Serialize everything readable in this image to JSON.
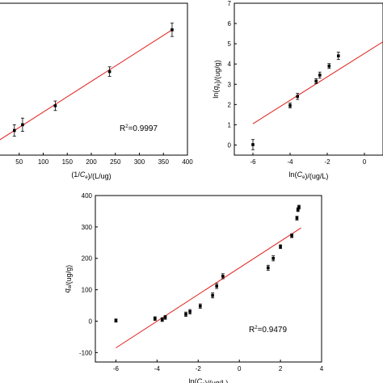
{
  "chart_data": [
    {
      "type": "scatter",
      "xlabel": "(1/C_e)/(L/ug)",
      "ylabel": "",
      "xlim": [
        0,
        400
      ],
      "x_ticks": [
        50,
        100,
        150,
        200,
        250,
        300,
        350,
        400
      ],
      "x_tick_labels": [
        "50",
        "100",
        "150",
        "200",
        "250",
        "300",
        "350",
        "400"
      ],
      "ylim": [
        0,
        8
      ],
      "y_ticks": [],
      "grid": false,
      "annotation": "R²=0.9997",
      "points": [
        {
          "x": 40,
          "y": 1.3,
          "err": 0.3
        },
        {
          "x": 57,
          "y": 1.6,
          "err": 0.35
        },
        {
          "x": 125,
          "y": 2.6,
          "err": 0.25
        },
        {
          "x": 238,
          "y": 4.4,
          "err": 0.25
        },
        {
          "x": 368,
          "y": 6.6,
          "err": 0.35
        }
      ],
      "fit": {
        "x": [
          0,
          368
        ],
        "y": [
          0.65,
          6.6
        ]
      }
    },
    {
      "type": "scatter",
      "xlabel": "ln(C_e)/(ug/L)",
      "ylabel": "ln(q_e)/(ug/g)",
      "xlim": [
        -7,
        1
      ],
      "x_ticks": [
        -6,
        -4,
        -2,
        0
      ],
      "x_tick_labels": [
        "-6",
        "-4",
        "-2",
        "0"
      ],
      "ylim": [
        -0.5,
        7
      ],
      "y_ticks": [
        0,
        1,
        2,
        3,
        4,
        5,
        6,
        7
      ],
      "y_tick_labels": [
        "0",
        "1",
        "2",
        "3",
        "4",
        "5",
        "6",
        "7"
      ],
      "grid": false,
      "annotation": "",
      "points": [
        {
          "x": -6.0,
          "y": 0.02,
          "err": 0.25
        },
        {
          "x": -4.0,
          "y": 1.95,
          "err": 0.12
        },
        {
          "x": -3.6,
          "y": 2.4,
          "err": 0.15
        },
        {
          "x": -2.6,
          "y": 3.15,
          "err": 0.12
        },
        {
          "x": -2.4,
          "y": 3.45,
          "err": 0.15
        },
        {
          "x": -1.9,
          "y": 3.9,
          "err": 0.12
        },
        {
          "x": -1.4,
          "y": 4.4,
          "err": 0.18
        }
      ],
      "fit": {
        "x": [
          -6,
          1
        ],
        "y": [
          1.05,
          5.1
        ]
      }
    },
    {
      "type": "scatter",
      "xlabel": "ln(C_e)/(ug/L)",
      "ylabel": "q_e/(ug/g)",
      "xlim": [
        -7,
        4
      ],
      "x_ticks": [
        -6,
        -4,
        -2,
        0,
        2,
        4
      ],
      "x_tick_labels": [
        "-6",
        "-4",
        "-2",
        "0",
        "2",
        "4"
      ],
      "ylim": [
        -130,
        400
      ],
      "y_ticks": [
        -100,
        0,
        100,
        200,
        300,
        400
      ],
      "y_tick_labels": [
        "-100",
        "0",
        "100",
        "200",
        "300",
        "400"
      ],
      "grid": false,
      "annotation": "R²=0.9479",
      "points": [
        {
          "x": -6.0,
          "y": 2,
          "err": 5
        },
        {
          "x": -4.1,
          "y": 8,
          "err": 6
        },
        {
          "x": -3.75,
          "y": 5,
          "err": 6
        },
        {
          "x": -3.6,
          "y": 12,
          "err": 6
        },
        {
          "x": -2.6,
          "y": 22,
          "err": 7
        },
        {
          "x": -2.4,
          "y": 30,
          "err": 7
        },
        {
          "x": -1.9,
          "y": 48,
          "err": 7
        },
        {
          "x": -1.3,
          "y": 82,
          "err": 8
        },
        {
          "x": -1.1,
          "y": 112,
          "err": 8
        },
        {
          "x": -0.8,
          "y": 143,
          "err": 8
        },
        {
          "x": 1.4,
          "y": 170,
          "err": 8
        },
        {
          "x": 1.65,
          "y": 200,
          "err": 8
        },
        {
          "x": 2.0,
          "y": 237,
          "err": 6
        },
        {
          "x": 2.55,
          "y": 272,
          "err": 6
        },
        {
          "x": 2.8,
          "y": 328,
          "err": 6
        },
        {
          "x": 2.85,
          "y": 355,
          "err": 6
        },
        {
          "x": 2.9,
          "y": 363,
          "err": 6
        }
      ],
      "fit": {
        "x": [
          -6,
          3.0
        ],
        "y": [
          -85,
          297
        ]
      }
    }
  ]
}
